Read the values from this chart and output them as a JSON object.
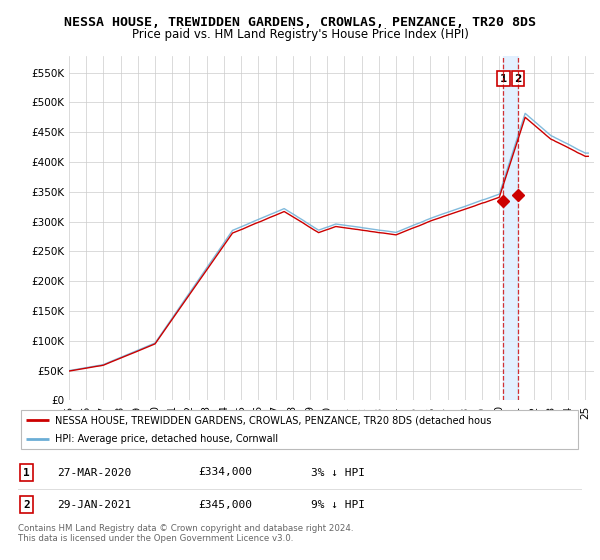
{
  "title": "NESSA HOUSE, TREWIDDEN GARDENS, CROWLAS, PENZANCE, TR20 8DS",
  "subtitle": "Price paid vs. HM Land Registry's House Price Index (HPI)",
  "ylabel_ticks": [
    0,
    50000,
    100000,
    150000,
    200000,
    250000,
    300000,
    350000,
    400000,
    450000,
    500000,
    550000
  ],
  "ylim": [
    0,
    578000
  ],
  "xlim_start": 1995.5,
  "xlim_end": 2025.5,
  "hpi_color": "#6baed6",
  "price_color": "#cc0000",
  "transaction1_date_num": 2020.23,
  "transaction2_date_num": 2021.08,
  "transaction1_price": 334000,
  "transaction2_price": 345000,
  "legend_line1": "NESSA HOUSE, TREWIDDEN GARDENS, CROWLAS, PENZANCE, TR20 8DS (detached hous",
  "legend_line2": "HPI: Average price, detached house, Cornwall",
  "table_row1": [
    "1",
    "27-MAR-2020",
    "£334,000",
    "3% ↓ HPI"
  ],
  "table_row2": [
    "2",
    "29-JAN-2021",
    "£345,000",
    "9% ↓ HPI"
  ],
  "footnote": "Contains HM Land Registry data © Crown copyright and database right 2024.\nThis data is licensed under the Open Government Licence v3.0.",
  "grid_color": "#cccccc",
  "title_fontsize": 9.5,
  "subtitle_fontsize": 8.5,
  "tick_fontsize": 7.5,
  "shaded_region_color": "#ddeeff"
}
